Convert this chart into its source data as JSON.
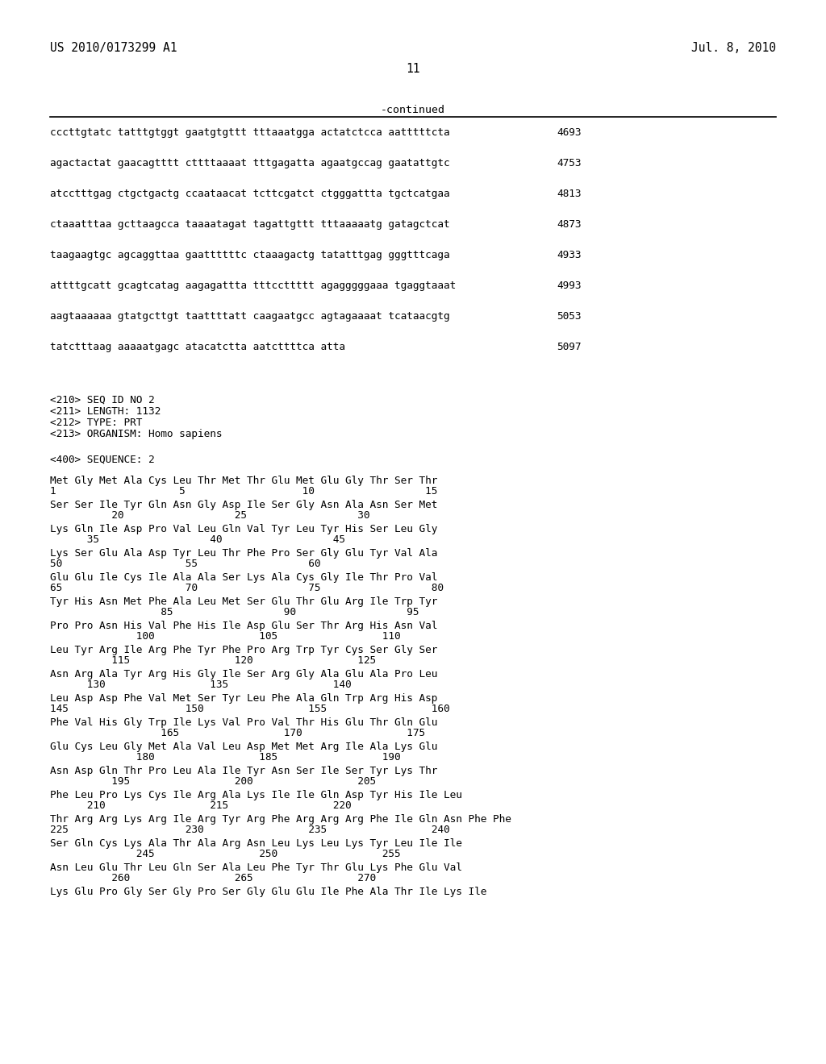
{
  "header_left": "US 2010/0173299 A1",
  "header_right": "Jul. 8, 2010",
  "page_number": "11",
  "continued_label": "-continued",
  "background_color": "#ffffff",
  "text_color": "#000000",
  "nucleotide_lines": [
    [
      "cccttgtatc tatttgtggt gaatgtgttt tttaaatgga actatctcca aatttttcta",
      "4693"
    ],
    [
      "agactactat gaacagtttt cttttaaaat tttgagatta agaatgccag gaatattgtc",
      "4753"
    ],
    [
      "atcctttgag ctgctgactg ccaataacat tcttcgatct ctgggattta tgctcatgaa",
      "4813"
    ],
    [
      "ctaaatttaa gcttaagcca taaaatagat tagattgttt tttaaaaatg gatagctcat",
      "4873"
    ],
    [
      "taagaagtgc agcaggttaa gaattttttc ctaaagactg tatatttgag gggtttcaga",
      "4933"
    ],
    [
      "attttgcatt gcagtcatag aagagattta tttccttttt agagggggaaa tgaggtaaat",
      "4993"
    ],
    [
      "aagtaaaaaa gtatgcttgt taattttatt caagaatgcc agtagaaaat tcataacgtg",
      "5053"
    ],
    [
      "tatctttaag aaaaatgagc atacatctta aatcttttca atta",
      "5097"
    ]
  ],
  "seq_info_lines": [
    "<210> SEQ ID NO 2",
    "<211> LENGTH: 1132",
    "<212> TYPE: PRT",
    "<213> ORGANISM: Homo sapiens"
  ],
  "seq_400_line": "<400> SEQUENCE: 2",
  "protein_blocks": [
    {
      "seq": "Met Gly Met Ala Cys Leu Thr Met Thr Glu Met Glu Gly Thr Ser Thr",
      "num_line": "1                    5                   10                  15"
    },
    {
      "seq": "Ser Ser Ile Tyr Gln Asn Gly Asp Ile Ser Gly Asn Ala Asn Ser Met",
      "num_line": "          20                  25                  30"
    },
    {
      "seq": "Lys Gln Ile Asp Pro Val Leu Gln Val Tyr Leu Tyr His Ser Leu Gly",
      "num_line": "      35                  40                  45"
    },
    {
      "seq": "Lys Ser Glu Ala Asp Tyr Leu Thr Phe Pro Ser Gly Glu Tyr Val Ala",
      "num_line": "50                    55                  60"
    },
    {
      "seq": "Glu Glu Ile Cys Ile Ala Ala Ser Lys Ala Cys Gly Ile Thr Pro Val",
      "num_line": "65                    70                  75                  80"
    },
    {
      "seq": "Tyr His Asn Met Phe Ala Leu Met Ser Glu Thr Glu Arg Ile Trp Tyr",
      "num_line": "                  85                  90                  95"
    },
    {
      "seq": "Pro Pro Asn His Val Phe His Ile Asp Glu Ser Thr Arg His Asn Val",
      "num_line": "              100                 105                 110"
    },
    {
      "seq": "Leu Tyr Arg Ile Arg Phe Tyr Phe Pro Arg Trp Tyr Cys Ser Gly Ser",
      "num_line": "          115                 120                 125"
    },
    {
      "seq": "Asn Arg Ala Tyr Arg His Gly Ile Ser Arg Gly Ala Glu Ala Pro Leu",
      "num_line": "      130                 135                 140"
    },
    {
      "seq": "Leu Asp Asp Phe Val Met Ser Tyr Leu Phe Ala Gln Trp Arg His Asp",
      "num_line": "145                   150                 155                 160"
    },
    {
      "seq": "Phe Val His Gly Trp Ile Lys Val Pro Val Thr His Glu Thr Gln Glu",
      "num_line": "                  165                 170                 175"
    },
    {
      "seq": "Glu Cys Leu Gly Met Ala Val Leu Asp Met Met Arg Ile Ala Lys Glu",
      "num_line": "              180                 185                 190"
    },
    {
      "seq": "Asn Asp Gln Thr Pro Leu Ala Ile Tyr Asn Ser Ile Ser Tyr Lys Thr",
      "num_line": "          195                 200                 205"
    },
    {
      "seq": "Phe Leu Pro Lys Cys Ile Arg Ala Lys Ile Ile Gln Asp Tyr His Ile Leu",
      "num_line": "      210                 215                 220"
    },
    {
      "seq": "Thr Arg Arg Lys Arg Ile Arg Tyr Arg Phe Arg Arg Arg Phe Ile Gln Asn Phe Phe",
      "num_line": "225                   230                 235                 240"
    },
    {
      "seq": "Ser Gln Cys Lys Ala Thr Ala Arg Asn Leu Lys Leu Lys Tyr Leu Ile Ile",
      "num_line": "              245                 250                 255"
    },
    {
      "seq": "Asn Leu Glu Thr Leu Gln Ser Ala Leu Phe Tyr Thr Glu Lys Phe Glu Val",
      "num_line": "          260                 265                 270"
    },
    {
      "seq": "Lys Glu Pro Gly Ser Gly Pro Ser Gly Glu Glu Ile Phe Ala Thr Ile Lys Ile",
      "num_line": ""
    }
  ]
}
